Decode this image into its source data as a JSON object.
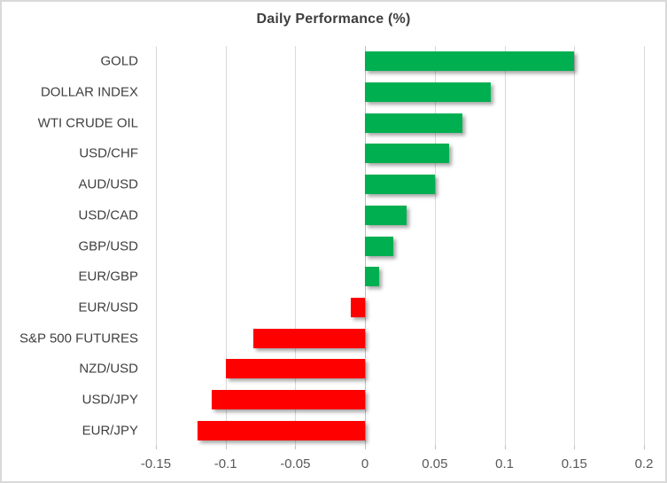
{
  "chart_data": {
    "type": "bar",
    "orientation": "horizontal",
    "title": "Daily Performance (%)",
    "categories": [
      "GOLD",
      "DOLLAR INDEX",
      "WTI CRUDE OIL",
      "USD/CHF",
      "AUD/USD",
      "USD/CAD",
      "GBP/USD",
      "EUR/GBP",
      "EUR/USD",
      "S&P 500 FUTURES",
      "NZD/USD",
      "USD/JPY",
      "EUR/JPY"
    ],
    "values": [
      0.15,
      0.09,
      0.07,
      0.06,
      0.05,
      0.03,
      0.02,
      0.01,
      -0.01,
      -0.08,
      -0.1,
      -0.11,
      -0.12
    ],
    "xlabel": "",
    "ylabel": "",
    "xlim": [
      -0.15,
      0.2
    ],
    "xtick_values": [
      -0.15,
      -0.1,
      -0.05,
      0,
      0.05,
      0.1,
      0.15,
      0.2
    ],
    "xtick_labels": [
      "-0.15",
      "-0.1",
      "-0.05",
      "0",
      "0.05",
      "0.1",
      "0.15",
      "0.2"
    ],
    "grid": true,
    "legend": false,
    "colors": {
      "positive": "#00B050",
      "negative": "#FF0000",
      "gridline": "#D9D9D9",
      "zero_axis": "#BFBFBF",
      "title_text": "#3F3F3F",
      "category_text": "#404040",
      "tick_text": "#595959",
      "background": "#FFFFFF",
      "frame_border": "#D9D9D9"
    }
  }
}
